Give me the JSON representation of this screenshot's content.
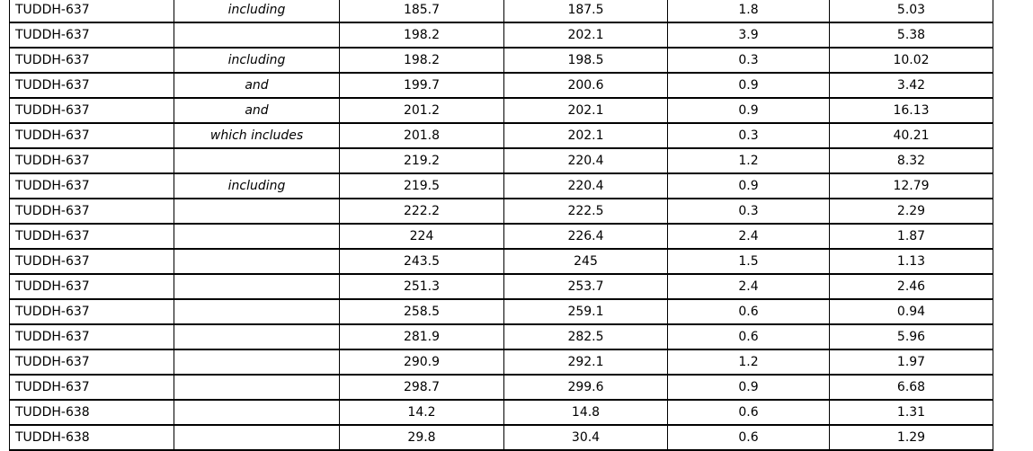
{
  "colors": {
    "background": "#ffffff",
    "border": "#000000",
    "text": "#000000"
  },
  "table": {
    "rows": [
      {
        "hole": "TUDDH-637",
        "qualifier": "including",
        "from": "185.7",
        "to": "187.5",
        "interval": "1.8",
        "grade": "5.03"
      },
      {
        "hole": "TUDDH-637",
        "qualifier": "",
        "from": "198.2",
        "to": "202.1",
        "interval": "3.9",
        "grade": "5.38"
      },
      {
        "hole": "TUDDH-637",
        "qualifier": "including",
        "from": "198.2",
        "to": "198.5",
        "interval": "0.3",
        "grade": "10.02"
      },
      {
        "hole": "TUDDH-637",
        "qualifier": "and",
        "from": "199.7",
        "to": "200.6",
        "interval": "0.9",
        "grade": "3.42"
      },
      {
        "hole": "TUDDH-637",
        "qualifier": "and",
        "from": "201.2",
        "to": "202.1",
        "interval": "0.9",
        "grade": "16.13"
      },
      {
        "hole": "TUDDH-637",
        "qualifier": "which includes",
        "from": "201.8",
        "to": "202.1",
        "interval": "0.3",
        "grade": "40.21"
      },
      {
        "hole": "TUDDH-637",
        "qualifier": "",
        "from": "219.2",
        "to": "220.4",
        "interval": "1.2",
        "grade": "8.32"
      },
      {
        "hole": "TUDDH-637",
        "qualifier": "including",
        "from": "219.5",
        "to": "220.4",
        "interval": "0.9",
        "grade": "12.79"
      },
      {
        "hole": "TUDDH-637",
        "qualifier": "",
        "from": "222.2",
        "to": "222.5",
        "interval": "0.3",
        "grade": "2.29"
      },
      {
        "hole": "TUDDH-637",
        "qualifier": "",
        "from": "224",
        "to": "226.4",
        "interval": "2.4",
        "grade": "1.87"
      },
      {
        "hole": "TUDDH-637",
        "qualifier": "",
        "from": "243.5",
        "to": "245",
        "interval": "1.5",
        "grade": "1.13"
      },
      {
        "hole": "TUDDH-637",
        "qualifier": "",
        "from": "251.3",
        "to": "253.7",
        "interval": "2.4",
        "grade": "2.46"
      },
      {
        "hole": "TUDDH-637",
        "qualifier": "",
        "from": "258.5",
        "to": "259.1",
        "interval": "0.6",
        "grade": "0.94"
      },
      {
        "hole": "TUDDH-637",
        "qualifier": "",
        "from": "281.9",
        "to": "282.5",
        "interval": "0.6",
        "grade": "5.96"
      },
      {
        "hole": "TUDDH-637",
        "qualifier": "",
        "from": "290.9",
        "to": "292.1",
        "interval": "1.2",
        "grade": "1.97"
      },
      {
        "hole": "TUDDH-637",
        "qualifier": "",
        "from": "298.7",
        "to": "299.6",
        "interval": "0.9",
        "grade": "6.68"
      },
      {
        "hole": "TUDDH-638",
        "qualifier": "",
        "from": "14.2",
        "to": "14.8",
        "interval": "0.6",
        "grade": "1.31"
      },
      {
        "hole": "TUDDH-638",
        "qualifier": "",
        "from": "29.8",
        "to": "30.4",
        "interval": "0.6",
        "grade": "1.29"
      }
    ]
  }
}
